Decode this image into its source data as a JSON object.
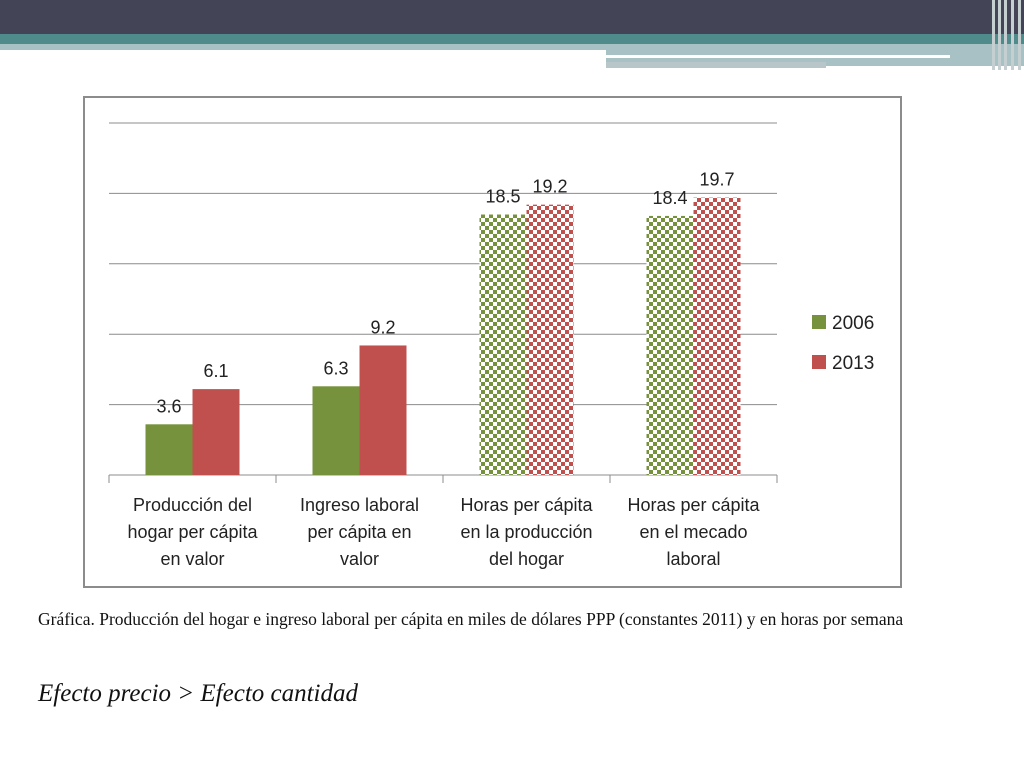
{
  "caption": "Gráfica. Producción del hogar e ingreso laboral per cápita en miles de dólares PPP (constantes 2011) y en horas por semana",
  "emphasis": "Efecto precio > Efecto cantidad",
  "chart_data": {
    "type": "bar",
    "categories": [
      [
        "Producción del",
        "hogar per cápita",
        "en valor"
      ],
      [
        "Ingreso laboral",
        "per cápita en",
        "valor"
      ],
      [
        "Horas per cápita",
        "en la producción",
        "del hogar"
      ],
      [
        "Horas per cápita",
        "en el mecado",
        "laboral"
      ]
    ],
    "series": [
      {
        "name": "2006",
        "color": "#76923c",
        "values": [
          3.6,
          6.3,
          18.5,
          18.4
        ],
        "labels": [
          "3.6",
          "6.3",
          "18.5",
          "18.4"
        ]
      },
      {
        "name": "2013",
        "color": "#c0504d",
        "values": [
          6.1,
          9.2,
          19.2,
          19.7
        ],
        "labels": [
          "6.1",
          "9.2",
          "19.2",
          "19.7"
        ]
      }
    ],
    "patterned_categories": [
      2,
      3
    ],
    "ylim": [
      0,
      25
    ],
    "gridlines": [
      0,
      5,
      10,
      15,
      20,
      25
    ],
    "legend_position": "right",
    "title": "",
    "xlabel": "",
    "ylabel": ""
  }
}
